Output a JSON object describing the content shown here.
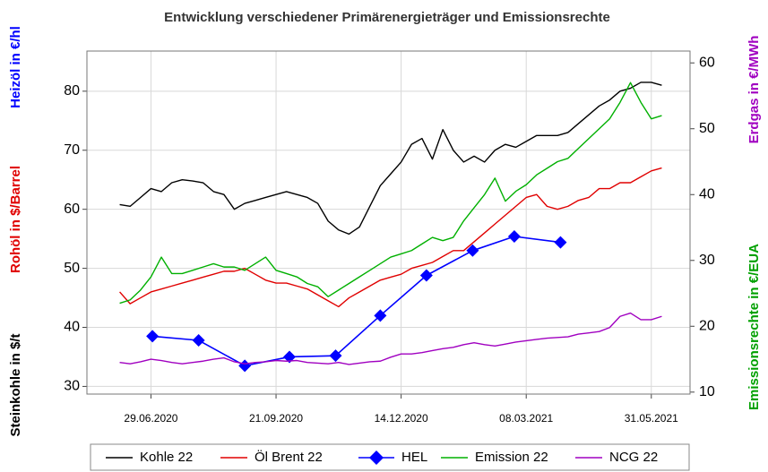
{
  "chart_data": {
    "type": "line",
    "title": "Entwicklung verschiedener Primärenergieträger und Emissionsrechte",
    "y_labels": [
      {
        "text": "Heizöl in €/hl",
        "color": "#0000ff"
      },
      {
        "text": "Rohöl in $/Barrel",
        "color": "#e00000"
      },
      {
        "text": "Steinkohle in $/t",
        "color": "#000000"
      }
    ],
    "y2_labels": [
      {
        "text": "Erdgas in €/MWh",
        "color": "#a000c0"
      },
      {
        "text": "Emissionsrechte in €/EUA",
        "color": "#00a000"
      }
    ],
    "x": [
      "08.06.2020",
      "15.06.2020",
      "22.06.2020",
      "29.06.2020",
      "06.07.2020",
      "13.07.2020",
      "20.07.2020",
      "27.07.2020",
      "03.08.2020",
      "10.08.2020",
      "17.08.2020",
      "24.08.2020",
      "31.08.2020",
      "07.09.2020",
      "14.09.2020",
      "21.09.2020",
      "28.09.2020",
      "05.10.2020",
      "12.10.2020",
      "19.10.2020",
      "26.10.2020",
      "02.11.2020",
      "09.11.2020",
      "16.11.2020",
      "23.11.2020",
      "30.11.2020",
      "07.12.2020",
      "14.12.2020",
      "21.12.2020",
      "28.12.2020",
      "04.01.2021",
      "11.01.2021",
      "18.01.2021",
      "25.01.2021",
      "01.02.2021",
      "08.02.2021",
      "15.02.2021",
      "22.02.2021",
      "01.03.2021",
      "08.03.2021",
      "15.03.2021",
      "22.03.2021",
      "29.03.2021",
      "05.04.2021",
      "12.04.2021",
      "19.04.2021",
      "26.04.2021",
      "03.05.2021",
      "10.05.2021",
      "17.05.2021",
      "24.05.2021",
      "31.05.2021",
      "07.06.2021"
    ],
    "xlim": [
      "17.05.2020",
      "26.06.2021"
    ],
    "xticks": [
      "29.06.2020",
      "21.09.2020",
      "14.12.2020",
      "08.03.2021",
      "31.05.2021"
    ],
    "ylim": [
      28.7,
      86.8
    ],
    "yticks": [
      30,
      40,
      50,
      60,
      70,
      80
    ],
    "y2lim": [
      9.7,
      61.8
    ],
    "y2ticks": [
      10,
      20,
      30,
      40,
      50,
      60
    ],
    "grid": true,
    "legend": "bottom",
    "series": [
      {
        "name": "Kohle 22",
        "color": "#000000",
        "values": [
          60.8,
          60.5,
          62.0,
          63.5,
          63.0,
          64.5,
          65.0,
          64.8,
          64.5,
          63.0,
          62.5,
          60.0,
          61.0,
          61.5,
          62.0,
          62.5,
          63.0,
          62.5,
          62.0,
          61.0,
          58.0,
          56.5,
          55.8,
          57.0,
          60.5,
          64.0,
          66.0,
          68.0,
          71.0,
          72.0,
          68.5,
          73.5,
          70.0,
          68.0,
          69.0,
          68.0,
          70.0,
          71.0,
          70.5,
          71.5,
          72.5,
          72.5,
          72.5,
          73.0,
          74.5,
          76.0,
          77.5,
          78.5,
          80.0,
          80.5,
          81.5,
          81.5,
          81.0
        ]
      },
      {
        "name": "Öl Brent 22",
        "color": "#e00000",
        "values": [
          46.0,
          44.0,
          45.0,
          46.0,
          46.5,
          47.0,
          47.5,
          48.0,
          48.5,
          49.0,
          49.5,
          49.5,
          50.0,
          49.0,
          48.0,
          47.5,
          47.5,
          47.0,
          46.5,
          45.5,
          44.5,
          43.5,
          45.0,
          46.0,
          47.0,
          48.0,
          48.5,
          49.0,
          50.0,
          50.5,
          51.0,
          52.0,
          53.0,
          53.0,
          54.5,
          56.0,
          57.5,
          59.0,
          60.5,
          62.0,
          62.5,
          60.5,
          60.0,
          60.5,
          61.5,
          62.0,
          63.5,
          63.5,
          64.5,
          64.5,
          65.5,
          66.5,
          67.0
        ]
      },
      {
        "name": "HEL",
        "color": "#0000ff",
        "marker": "diamond",
        "x": [
          "30.06.2020",
          "31.07.2020",
          "31.08.2020",
          "30.09.2020",
          "31.10.2020",
          "30.11.2020",
          "31.12.2020",
          "31.01.2021",
          "28.02.2021",
          "31.03.2021"
        ],
        "values": [
          38.5,
          37.8,
          33.5,
          35.0,
          35.2,
          42.0,
          48.8,
          53.0,
          55.4,
          54.4
        ]
      },
      {
        "name": "Emission 22",
        "color": "#00b000",
        "axis": "y2",
        "values": [
          23.5,
          24.0,
          25.5,
          27.5,
          30.5,
          28.0,
          28.0,
          28.5,
          29.0,
          29.5,
          29.0,
          29.0,
          28.5,
          29.5,
          30.5,
          28.5,
          28.0,
          27.5,
          26.5,
          26.0,
          24.5,
          25.5,
          26.5,
          27.5,
          28.5,
          29.5,
          30.5,
          31.0,
          31.5,
          32.5,
          33.5,
          33.0,
          33.5,
          36.0,
          38.0,
          40.0,
          42.5,
          39.0,
          40.5,
          41.5,
          43.0,
          44.0,
          45.0,
          45.5,
          47.0,
          48.5,
          50.0,
          51.5,
          54.0,
          57.0,
          54.0,
          51.5,
          52.0
        ]
      },
      {
        "name": "NCG 22",
        "color": "#a000c0",
        "axis": "y2",
        "values": [
          14.5,
          14.3,
          14.6,
          15.0,
          14.8,
          14.5,
          14.3,
          14.5,
          14.7,
          15.0,
          15.2,
          14.6,
          14.3,
          14.5,
          14.6,
          14.8,
          14.7,
          14.8,
          14.5,
          14.4,
          14.3,
          14.5,
          14.2,
          14.4,
          14.6,
          14.7,
          15.3,
          15.8,
          15.8,
          16.0,
          16.3,
          16.6,
          16.8,
          17.2,
          17.5,
          17.2,
          17.0,
          17.3,
          17.6,
          17.8,
          18.0,
          18.2,
          18.3,
          18.4,
          18.8,
          19.0,
          19.2,
          19.8,
          21.5,
          22.0,
          21.0,
          21.0,
          21.5
        ]
      }
    ]
  }
}
